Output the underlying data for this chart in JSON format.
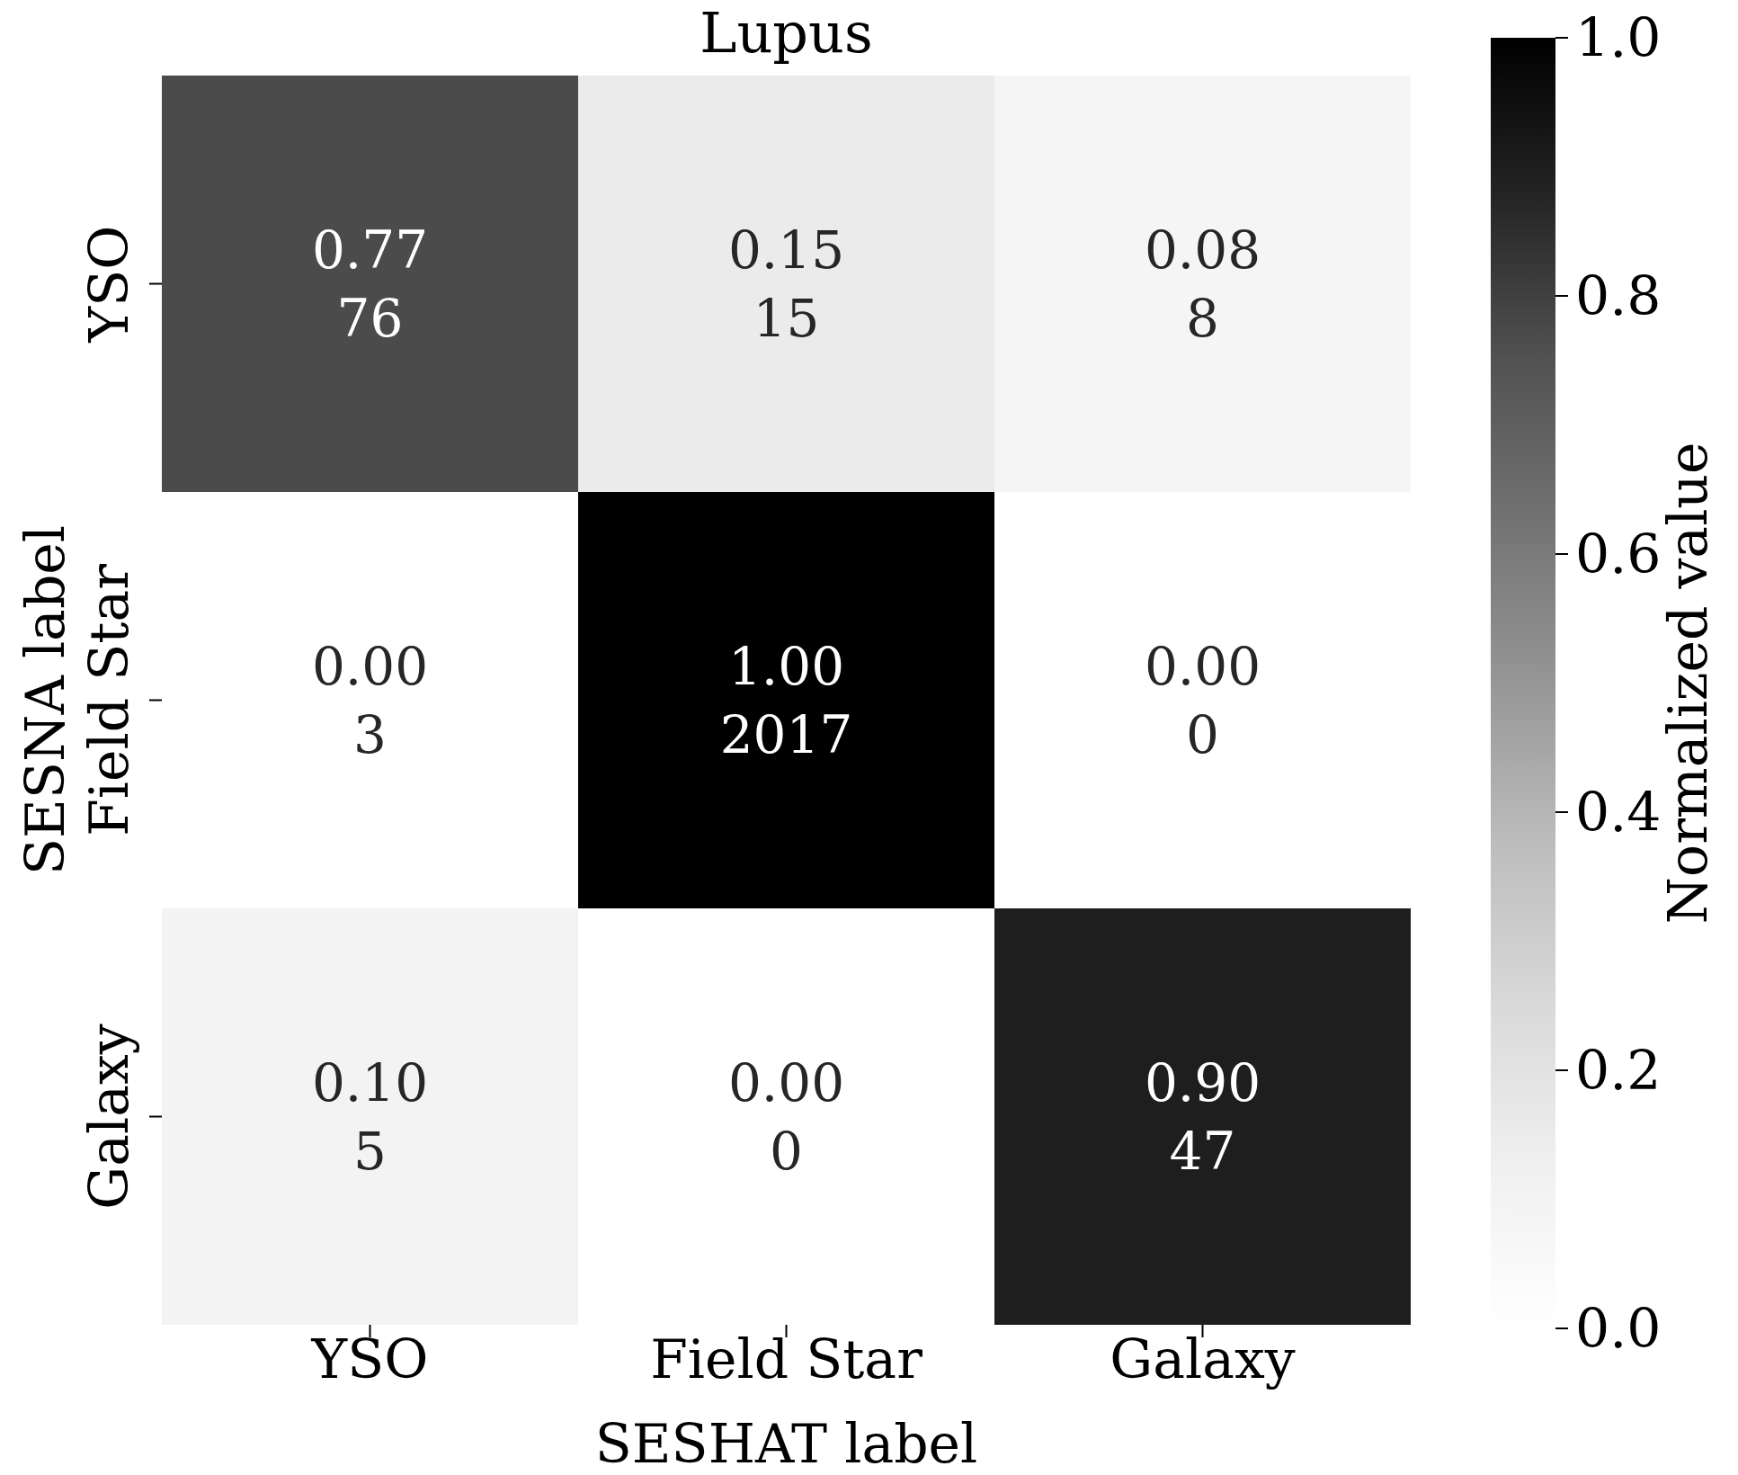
{
  "chart_data": {
    "type": "heatmap",
    "title": "Lupus",
    "xlabel": "SESHAT label",
    "ylabel": "SESNA label",
    "clabel": "Normalized value",
    "categories": [
      "YSO",
      "Field Star",
      "Galaxy"
    ],
    "y_categories": [
      "YSO",
      "Field Star",
      "Galaxy"
    ],
    "cells": [
      [
        0.77,
        0.15,
        0.08
      ],
      [
        0.0,
        1.0,
        0.0
      ],
      [
        0.1,
        0.0,
        0.9
      ]
    ],
    "cell_labels": [
      [
        "0.77\n76",
        "0.15\n15",
        "0.08\n8"
      ],
      [
        "0.00\n3",
        "1.00\n2017",
        "0.00\n0"
      ],
      [
        "0.10\n5",
        "0.00\n0",
        "0.90\n47"
      ]
    ],
    "clim": [
      0,
      1
    ],
    "cticks": [
      {
        "value": 0,
        "label": "0.0"
      },
      {
        "value": 0.2,
        "label": "0.2"
      },
      {
        "value": 0.4,
        "label": "0.4"
      },
      {
        "value": 0.6,
        "label": "0.6"
      },
      {
        "value": 0.8,
        "label": "0.8"
      },
      {
        "value": 1,
        "label": "1.0"
      }
    ]
  }
}
